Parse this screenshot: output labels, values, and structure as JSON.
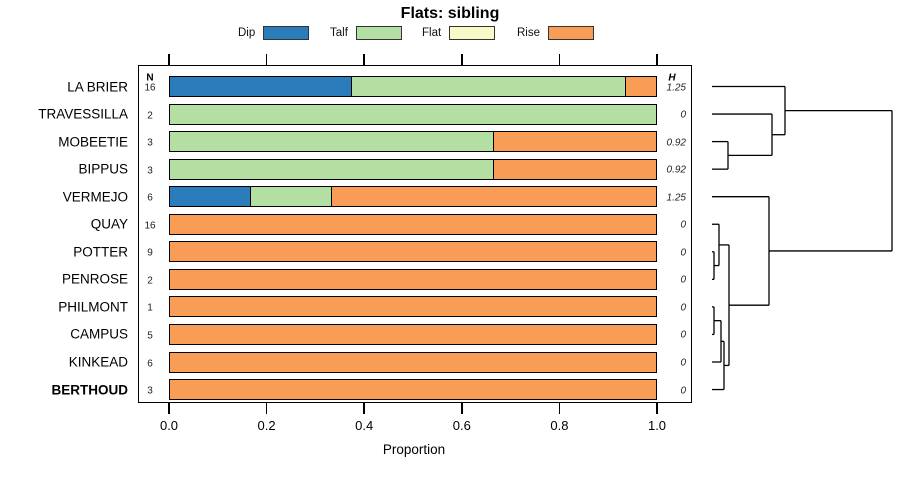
{
  "chart_data": {
    "type": "bar",
    "orientation": "horizontal",
    "stacked": true,
    "title": "Flats: sibling",
    "xlabel": "Proportion",
    "xlim": [
      0,
      1
    ],
    "xticks": [
      0,
      0.2,
      0.4,
      0.6,
      0.8,
      1
    ],
    "xtick_labels": [
      "0.0",
      "0.2",
      "0.4",
      "0.6",
      "0.8",
      "1.0"
    ],
    "grid": false,
    "legend_position": "top",
    "categories": [
      "LA BRIER",
      "TRAVESSILLA",
      "MOBEETIE",
      "BIPPUS",
      "VERMEJO",
      "QUAY",
      "POTTER",
      "PENROSE",
      "PHILMONT",
      "CAMPUS",
      "KINKEAD",
      "BERTHOUD"
    ],
    "emphasized_category": "BERTHOUD",
    "legend": [
      {
        "label": "Dip",
        "color": "#2b7cba"
      },
      {
        "label": "Talf",
        "color": "#b3dfa2"
      },
      {
        "label": "Flat",
        "color": "#f9f9c6"
      },
      {
        "label": "Rise",
        "color": "#f99c55"
      }
    ],
    "series": [
      {
        "name": "Dip",
        "values": [
          0.375,
          0,
          0,
          0,
          0.1667,
          0,
          0,
          0,
          0,
          0,
          0,
          0
        ]
      },
      {
        "name": "Talf",
        "values": [
          0.5625,
          1,
          0.6667,
          0.6667,
          0.1667,
          0,
          0,
          0,
          0,
          0,
          0,
          0
        ]
      },
      {
        "name": "Flat",
        "values": [
          0,
          0,
          0,
          0,
          0,
          0,
          0,
          0,
          0,
          0,
          0,
          0
        ]
      },
      {
        "name": "Rise",
        "values": [
          0.0625,
          0,
          0.3333,
          0.3333,
          0.6666,
          1,
          1,
          1,
          1,
          1,
          1,
          1
        ]
      }
    ],
    "n_column": {
      "header": "N",
      "values": [
        "16",
        "2",
        "3",
        "3",
        "6",
        "16",
        "9",
        "2",
        "1",
        "5",
        "6",
        "3"
      ]
    },
    "h_column": {
      "header": "H",
      "values": [
        "1.25",
        "0",
        "0.92",
        "0.92",
        "1.25",
        "0",
        "0",
        "0",
        "0",
        "0",
        "0",
        "0"
      ]
    },
    "dendrogram": {
      "leaf_x": 712,
      "tree": {
        "x": 892,
        "children": [
          {
            "x": 785,
            "children": [
              {
                "leaf": 0
              },
              {
                "x": 772,
                "children": [
                  {
                    "leaf": 1
                  },
                  {
                    "x": 728,
                    "children": [
                      {
                        "leaf": 2
                      },
                      {
                        "leaf": 3
                      }
                    ]
                  }
                ]
              }
            ]
          },
          {
            "x": 769,
            "children": [
              {
                "leaf": 4
              },
              {
                "x": 729,
                "children": [
                  {
                    "x": 719,
                    "children": [
                      {
                        "leaf": 5
                      },
                      {
                        "x": 714,
                        "children": [
                          {
                            "leaf": 6
                          },
                          {
                            "leaf": 7
                          }
                        ]
                      }
                    ]
                  },
                  {
                    "x": 724,
                    "children": [
                      {
                        "x": 721,
                        "children": [
                          {
                            "x": 714,
                            "children": [
                              {
                                "leaf": 8
                              },
                              {
                                "leaf": 9
                              }
                            ]
                          },
                          {
                            "leaf": 10
                          }
                        ]
                      },
                      {
                        "leaf": 11
                      }
                    ]
                  }
                ]
              }
            ]
          }
        ]
      }
    }
  }
}
